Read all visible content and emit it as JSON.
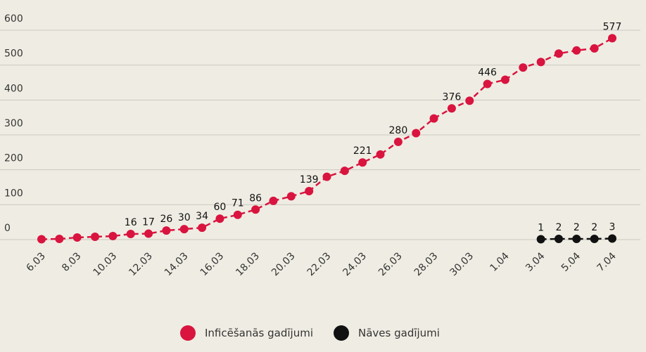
{
  "chart_data": {
    "type": "line",
    "categories": [
      "6.03",
      null,
      "8.03",
      null,
      "10.03",
      null,
      "12.03",
      null,
      "14.03",
      null,
      "16.03",
      null,
      "18.03",
      null,
      "20.03",
      null,
      "22.03",
      null,
      "24.03",
      null,
      "26.03",
      null,
      "28.03",
      null,
      "30.03",
      null,
      "1.04",
      null,
      "3.04",
      null,
      "5.04",
      null,
      "7.04"
    ],
    "series": [
      {
        "name": "Inficēšanās gadījumi",
        "color": "#d9143f",
        "values": [
          1,
          2,
          6,
          8,
          10,
          16,
          17,
          26,
          30,
          34,
          60,
          71,
          86,
          111,
          124,
          139,
          180,
          197,
          221,
          244,
          280,
          305,
          347,
          376,
          398,
          446,
          458,
          493,
          509,
          533,
          542,
          548,
          577
        ],
        "value_labels": [
          null,
          null,
          null,
          null,
          null,
          "16",
          "17",
          "26",
          "30",
          "34",
          "60",
          "71",
          "86",
          null,
          null,
          "139",
          null,
          null,
          "221",
          null,
          "280",
          null,
          null,
          "376",
          null,
          "446",
          null,
          null,
          null,
          null,
          null,
          null,
          "577"
        ]
      },
      {
        "name": "Nāves gadījumi",
        "color": "#111111",
        "values": [
          null,
          null,
          null,
          null,
          null,
          null,
          null,
          null,
          null,
          null,
          null,
          null,
          null,
          null,
          null,
          null,
          null,
          null,
          null,
          null,
          null,
          null,
          null,
          null,
          null,
          null,
          null,
          null,
          1,
          2,
          2,
          2,
          3
        ],
        "value_labels": [
          null,
          null,
          null,
          null,
          null,
          null,
          null,
          null,
          null,
          null,
          null,
          null,
          null,
          null,
          null,
          null,
          null,
          null,
          null,
          null,
          null,
          null,
          null,
          null,
          null,
          null,
          null,
          null,
          "1",
          "2",
          "2",
          "2",
          "3"
        ]
      }
    ],
    "ylim": [
      0,
      600
    ],
    "yticks": [
      0,
      100,
      200,
      300,
      400,
      500,
      600
    ],
    "grid": true,
    "legend": "bottom"
  }
}
